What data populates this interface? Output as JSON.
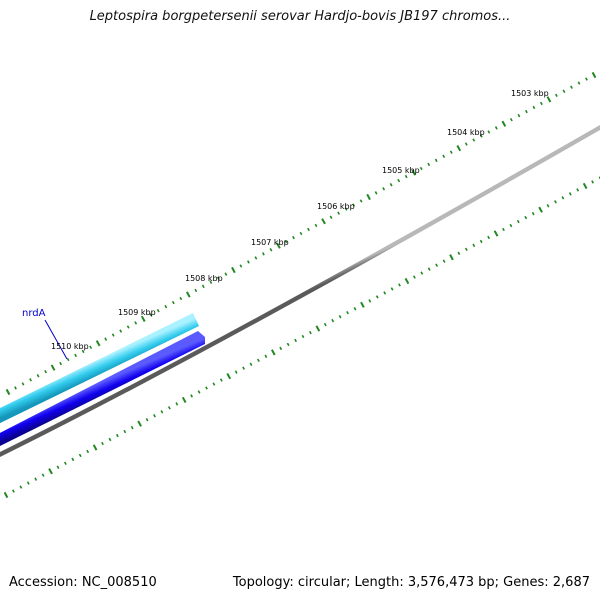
{
  "title": "Leptospira borgpetersenii serovar Hardjo-bovis JB197 chromos...",
  "footer": {
    "accession": "Accession: NC_008510",
    "summary": "Topology: circular; Length: 3,576,473 bp; Genes: 2,687"
  },
  "ruler": {
    "unit": "kbp",
    "labels": [
      "1503 kbp",
      "1504 kbp",
      "1505 kbp",
      "1506 kbp",
      "1507 kbp",
      "1508 kbp",
      "1509 kbp",
      "1510 kbp"
    ]
  },
  "genes": [
    {
      "name": "nrdA",
      "strand": "forward"
    }
  ],
  "colors": {
    "backbone": "#808080",
    "forward_gene": "#33ccee",
    "reverse_gene": "#1100ee",
    "tick": "#228822",
    "gene_label": "#0000cc"
  }
}
